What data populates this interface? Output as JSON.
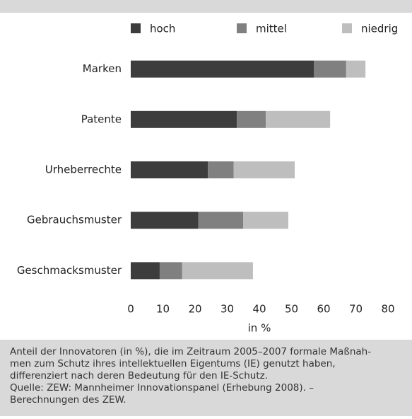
{
  "chart_data": {
    "type": "stacked-barh",
    "categories": [
      "Marken",
      "Patente",
      "Urheberrechte",
      "Gebrauchsmuster",
      "Geschmacksmuster"
    ],
    "series": [
      {
        "name": "hoch",
        "color": "#3d3d3d",
        "values": [
          57,
          33,
          24,
          21,
          9
        ]
      },
      {
        "name": "mittel",
        "color": "#808080",
        "values": [
          10,
          9,
          8,
          14,
          7
        ]
      },
      {
        "name": "niedrig",
        "color": "#bebebe",
        "values": [
          6,
          20,
          19,
          14,
          22
        ]
      }
    ],
    "xlabel": "in %",
    "xlim": [
      0,
      80
    ],
    "xticks": [
      0,
      10,
      20,
      30,
      40,
      50,
      60,
      70,
      80
    ],
    "grid": false,
    "legend": "top"
  },
  "caption": {
    "lines": [
      "Anteil der Innovatoren (in %), die im Zeitraum 2005–2007 formale Maßnah-",
      "men zum Schutz ihres intellektuellen Eigentums (IE) genutzt haben,",
      "differenziert nach deren Bedeutung für den IE-Schutz.",
      "Quelle: ZEW: Mannheimer Innovationspanel (Erhebung 2008). –",
      "Berechnungen des ZEW."
    ]
  }
}
